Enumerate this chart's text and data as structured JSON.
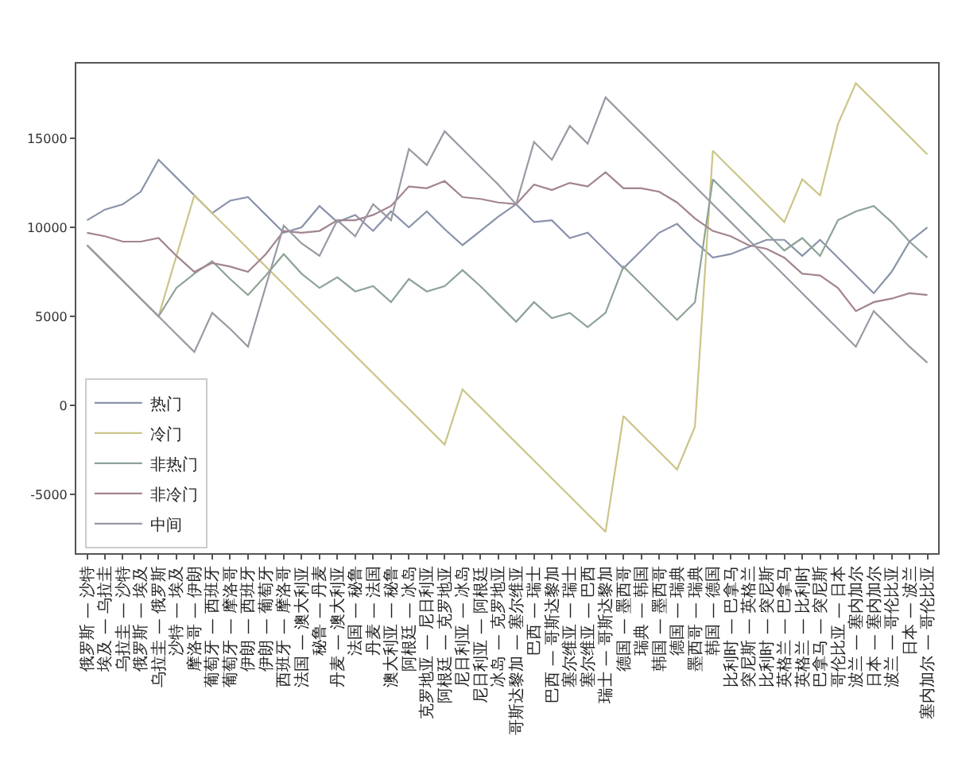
{
  "chart_data": {
    "type": "line",
    "categories": [
      "俄罗斯 — 沙特",
      "埃及 — 乌拉圭",
      "乌拉圭 — 沙特",
      "俄罗斯 — 埃及",
      "乌拉圭 — 俄罗斯",
      "沙特 — 埃及",
      "摩洛哥 — 伊朗",
      "葡萄牙 — 西班牙",
      "葡萄牙 — 摩洛哥",
      "伊朗 — 西班牙",
      "伊朗 — 葡萄牙",
      "西班牙 — 摩洛哥",
      "法国 — 澳大利亚",
      "秘鲁 — 丹麦",
      "丹麦 — 澳大利亚",
      "法国 — 秘鲁",
      "丹麦 — 法国",
      "澳大利亚 — 秘鲁",
      "阿根廷 — 冰岛",
      "克罗地亚 — 尼日利亚",
      "阿根廷 — 克罗地亚",
      "尼日利亚 — 冰岛",
      "尼日利亚 — 阿根廷",
      "冰岛 — 克罗地亚",
      "哥斯达黎加 — 塞尔维亚",
      "巴西 — 瑞士",
      "巴西 — 哥斯达黎加",
      "塞尔维亚 — 瑞士",
      "塞尔维亚 — 巴西",
      "瑞士 — 哥斯达黎加",
      "德国 — 墨西哥",
      "瑞典 — 韩国",
      "韩国 — 墨西哥",
      "德国 — 瑞典",
      "墨西哥 — 瑞典",
      "韩国 — 德国",
      "比利时 — 巴拿马",
      "突尼斯 — 英格兰",
      "比利时 — 突尼斯",
      "英格兰 — 巴拿马",
      "英格兰 — 比利时",
      "巴拿马 — 突尼斯",
      "哥伦比亚 — 日本",
      "波兰 — 塞内加尔",
      "日本 — 塞内加尔",
      "波兰 — 哥伦比亚",
      "日本 — 波兰",
      "塞内加尔 — 哥伦比亚"
    ],
    "series": [
      {
        "name": "热门",
        "color": "#8a93ab",
        "values": [
          10400,
          11000,
          11300,
          12000,
          13800,
          12800,
          11800,
          10800,
          11500,
          11700,
          10700,
          9700,
          10000,
          11200,
          10300,
          10700,
          9800,
          10900,
          10000,
          10900,
          9900,
          9000,
          9800,
          10600,
          11300,
          10300,
          10400,
          9400,
          9700,
          8700,
          7700,
          8700,
          9700,
          10200,
          9200,
          8300,
          8500,
          8900,
          9300,
          9300,
          8400,
          9300,
          8300,
          7300,
          6300,
          7500,
          9200,
          10000
        ]
      },
      {
        "name": "冷门",
        "color": "#cbc588",
        "values": [
          9000,
          8000,
          7000,
          6000,
          5000,
          8400,
          11800,
          10800,
          9800,
          8800,
          7800,
          6800,
          5800,
          4800,
          3800,
          2800,
          1800,
          800,
          -200,
          -1200,
          -2200,
          900,
          -100,
          -1100,
          -2100,
          -3100,
          -4100,
          -5100,
          -6100,
          -7100,
          -600,
          -1600,
          -2600,
          -3600,
          -1200,
          14300,
          13300,
          12300,
          11300,
          10300,
          12700,
          11800,
          15800,
          18100,
          17100,
          16100,
          15100,
          14100
        ]
      },
      {
        "name": "非热门",
        "color": "#8ea397",
        "values": [
          9000,
          8000,
          7000,
          6000,
          5000,
          6600,
          7400,
          8100,
          7100,
          6200,
          7300,
          8500,
          7400,
          6600,
          7200,
          6400,
          6700,
          5800,
          7100,
          6400,
          6700,
          7600,
          6700,
          5700,
          4700,
          5800,
          4900,
          5200,
          4400,
          5200,
          7800,
          6800,
          5800,
          4800,
          5800,
          12700,
          11700,
          10700,
          9700,
          8700,
          9400,
          8400,
          10400,
          10900,
          11200,
          10300,
          9200,
          8300
        ]
      },
      {
        "name": "非冷门",
        "color": "#a2848f",
        "values": [
          9700,
          9500,
          9200,
          9200,
          9400,
          8400,
          7500,
          8000,
          7800,
          7500,
          8500,
          9800,
          9700,
          9800,
          10400,
          10400,
          10700,
          11200,
          12300,
          12200,
          12600,
          11700,
          11600,
          11400,
          11300,
          12400,
          12100,
          12500,
          12300,
          13100,
          12200,
          12200,
          12000,
          11400,
          10500,
          9800,
          9500,
          9000,
          8800,
          8300,
          7400,
          7300,
          6600,
          5300,
          5800,
          6000,
          6300,
          6200
        ]
      },
      {
        "name": "中间",
        "color": "#9a98a4",
        "values": [
          9000,
          8000,
          7000,
          6000,
          5000,
          4000,
          3000,
          5200,
          4300,
          3300,
          6700,
          10100,
          9100,
          8400,
          10400,
          9500,
          11300,
          10400,
          14400,
          13500,
          15400,
          14400,
          13400,
          12400,
          11300,
          14800,
          13800,
          15700,
          14700,
          17300,
          16300,
          15300,
          14300,
          13300,
          12300,
          11300,
          10300,
          9300,
          8300,
          7300,
          6300,
          5300,
          4300,
          3300,
          5300,
          4300,
          3300,
          2400
        ]
      }
    ],
    "ylim": [
      -8300,
      19200
    ],
    "yticks": [
      -5000,
      0,
      5000,
      10000,
      15000
    ],
    "legend": "bottom left",
    "line_style": "solid"
  }
}
